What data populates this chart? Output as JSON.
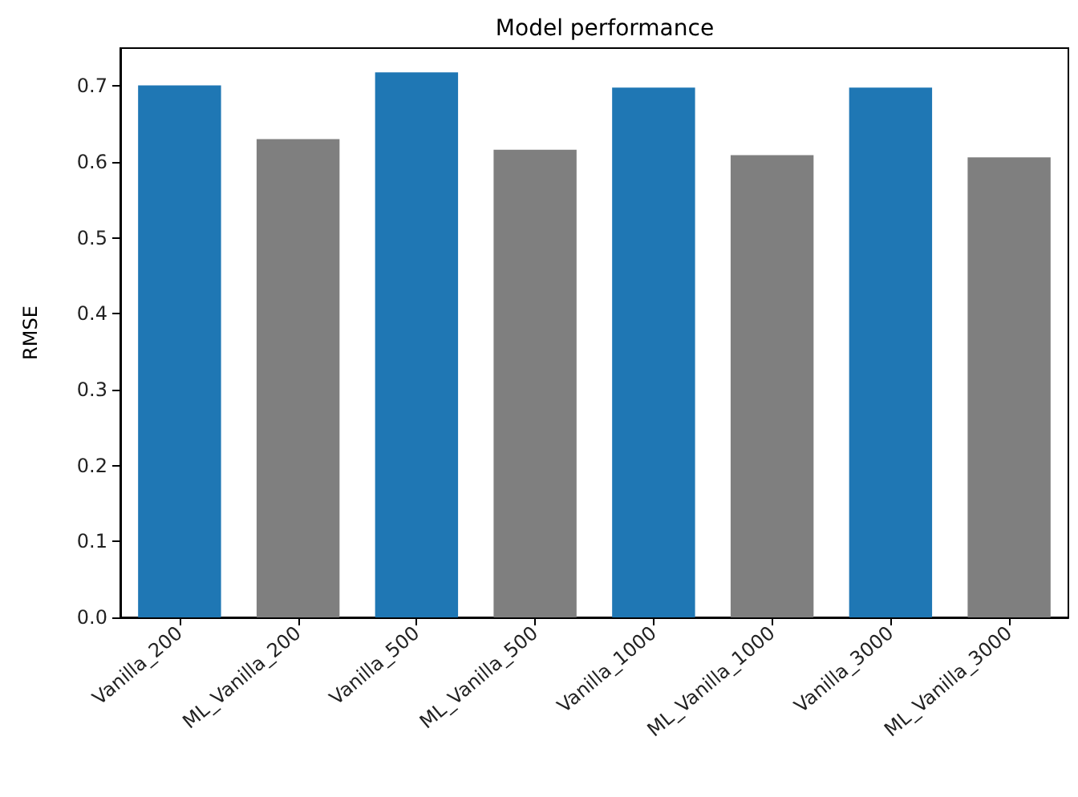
{
  "chart_data": {
    "type": "bar",
    "title": "Model performance",
    "ylabel": "RMSE",
    "categories": [
      "Vanilla_200",
      "ML_Vanilla_200",
      "Vanilla_500",
      "ML_Vanilla_500",
      "Vanilla_1000",
      "ML_Vanilla_1000",
      "Vanilla_3000",
      "ML_Vanilla_3000"
    ],
    "values": [
      0.701,
      0.63,
      0.718,
      0.616,
      0.698,
      0.609,
      0.698,
      0.606
    ],
    "colors": [
      "#1f77b4",
      "#7f7f7f",
      "#1f77b4",
      "#7f7f7f",
      "#1f77b4",
      "#7f7f7f",
      "#1f77b4",
      "#7f7f7f"
    ],
    "ylim": [
      0,
      0.75
    ],
    "yticks": [
      {
        "value": 0,
        "label": "0.0"
      },
      0.1,
      0.2,
      0.3,
      0.4,
      0.5,
      0.6,
      0.7
    ],
    "grid": false
  }
}
